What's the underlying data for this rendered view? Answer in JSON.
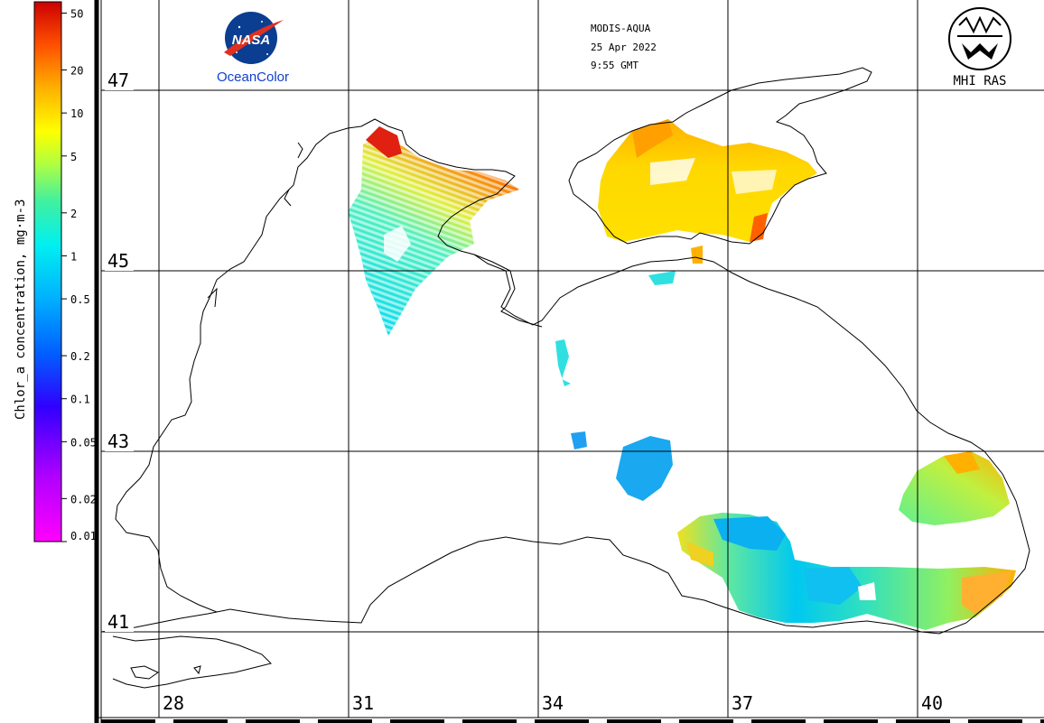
{
  "header": {
    "sensor": "MODIS-AQUA",
    "date": "25 Apr 2022",
    "time": "9:55 GMT"
  },
  "logos": {
    "nasa_text": "NASA",
    "oceancolor_text": "OceanColor",
    "mhi_text": "MHI RAS"
  },
  "colorbar": {
    "title": "Chlor_a concentration, mg·m-3",
    "ticks": [
      {
        "label": "50",
        "value": 50
      },
      {
        "label": "20",
        "value": 20
      },
      {
        "label": "10",
        "value": 10
      },
      {
        "label": "5",
        "value": 5
      },
      {
        "label": "2",
        "value": 2
      },
      {
        "label": "1",
        "value": 1
      },
      {
        "label": "0.5",
        "value": 0.5
      },
      {
        "label": "0.2",
        "value": 0.2
      },
      {
        "label": "0.1",
        "value": 0.1
      },
      {
        "label": "0.05",
        "value": 0.05
      },
      {
        "label": "0.02",
        "value": 0.02
      },
      {
        "label": "0.01",
        "value": 0.01
      }
    ],
    "colors": [
      "#ff00ff",
      "#8a2be2",
      "#0000ff",
      "#0090ff",
      "#00e0ff",
      "#30e8a0",
      "#c0ff30",
      "#ffff00",
      "#ffb000",
      "#ff5000",
      "#cc0000"
    ]
  },
  "axes": {
    "lat_labels": [
      "47",
      "45",
      "43",
      "41"
    ],
    "lon_labels": [
      "28",
      "31",
      "34",
      "37",
      "40"
    ]
  },
  "colors": {
    "grid": "#000000",
    "coast": "#000000",
    "background": "#ffffff"
  }
}
